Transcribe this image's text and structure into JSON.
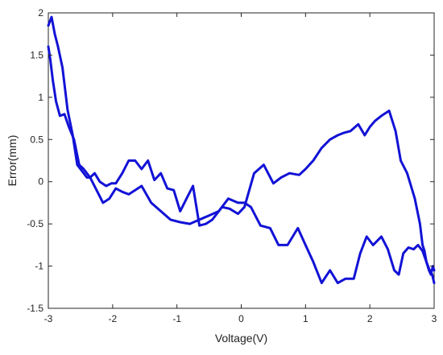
{
  "chart_data": {
    "type": "line",
    "title": "",
    "xlabel": "Voltage(V)",
    "ylabel": "Error(mm)",
    "xlim": [
      -3,
      3
    ],
    "ylim": [
      -1.5,
      2
    ],
    "xticks": [
      -3,
      -2,
      -1,
      0,
      1,
      2,
      3
    ],
    "yticks": [
      -1.5,
      -1,
      -0.5,
      0,
      0.5,
      1,
      1.5,
      2
    ],
    "xtick_labels": [
      "-3",
      "-2",
      "-1",
      "0",
      "1",
      "2",
      "3"
    ],
    "ytick_labels": [
      "-1.5",
      "-1",
      "-0.5",
      "0",
      "0.5",
      "1",
      "1.5",
      "2"
    ],
    "grid": false,
    "legend": null,
    "series": [
      {
        "color": "#1212d6",
        "x": [
          -3.0,
          -2.95,
          -2.9,
          -2.85,
          -2.78,
          -2.7,
          -2.62,
          -2.55,
          -2.5,
          -2.45,
          -2.4,
          -2.35,
          -2.28,
          -2.2,
          -2.1,
          -2.02,
          -1.95,
          -1.85,
          -1.75,
          -1.65,
          -1.55,
          -1.45,
          -1.35,
          -1.25,
          -1.15,
          -1.05,
          -0.95,
          -0.85,
          -0.75,
          -0.65,
          -0.55,
          -0.45,
          -0.3,
          -0.18,
          -0.05,
          0.05,
          0.2,
          0.35,
          0.5,
          0.62,
          0.75,
          0.9,
          1.0,
          1.12,
          1.25,
          1.38,
          1.5,
          1.6,
          1.7,
          1.82,
          1.92,
          2.0,
          2.08,
          2.18,
          2.3,
          2.4,
          2.48,
          2.58,
          2.7,
          2.78,
          2.82,
          2.85,
          2.88,
          2.92,
          2.95,
          2.98,
          3.0
        ],
        "y": [
          1.85,
          1.95,
          1.75,
          1.6,
          1.35,
          0.85,
          0.55,
          0.2,
          0.15,
          0.1,
          0.05,
          0.05,
          0.1,
          0.0,
          -0.05,
          -0.02,
          -0.02,
          0.1,
          0.25,
          0.25,
          0.15,
          0.25,
          0.02,
          0.1,
          -0.08,
          -0.1,
          -0.35,
          -0.2,
          -0.05,
          -0.52,
          -0.5,
          -0.45,
          -0.3,
          -0.32,
          -0.38,
          -0.3,
          0.1,
          0.2,
          -0.02,
          0.05,
          0.1,
          0.08,
          0.15,
          0.25,
          0.4,
          0.5,
          0.55,
          0.58,
          0.6,
          0.68,
          0.55,
          0.65,
          0.72,
          0.78,
          0.84,
          0.6,
          0.25,
          0.1,
          -0.2,
          -0.5,
          -0.75,
          -0.82,
          -0.95,
          -1.05,
          -1.1,
          -1.0,
          -1.05
        ]
      },
      {
        "color": "#1212d6",
        "x": [
          3.0,
          2.97,
          2.93,
          2.88,
          2.82,
          2.75,
          2.68,
          2.6,
          2.52,
          2.45,
          2.38,
          2.28,
          2.18,
          2.05,
          1.95,
          1.85,
          1.75,
          1.62,
          1.5,
          1.38,
          1.25,
          1.12,
          1.0,
          0.88,
          0.72,
          0.58,
          0.45,
          0.3,
          0.15,
          0.05,
          -0.05,
          -0.2,
          -0.35,
          -0.5,
          -0.65,
          -0.8,
          -0.95,
          -1.1,
          -1.25,
          -1.4,
          -1.55,
          -1.65,
          -1.75,
          -1.85,
          -1.95,
          -2.05,
          -2.15,
          -2.25,
          -2.35,
          -2.45,
          -2.52,
          -2.6,
          -2.68,
          -2.75,
          -2.82,
          -2.88,
          -2.93,
          -2.97,
          -3.0
        ],
        "y": [
          -1.2,
          -1.1,
          -1.05,
          -0.95,
          -0.82,
          -0.75,
          -0.8,
          -0.78,
          -0.85,
          -1.1,
          -1.05,
          -0.8,
          -0.65,
          -0.75,
          -0.65,
          -0.85,
          -1.15,
          -1.15,
          -1.2,
          -1.05,
          -1.2,
          -0.95,
          -0.75,
          -0.55,
          -0.75,
          -0.75,
          -0.55,
          -0.52,
          -0.3,
          -0.25,
          -0.25,
          -0.2,
          -0.35,
          -0.4,
          -0.45,
          -0.5,
          -0.48,
          -0.45,
          -0.35,
          -0.25,
          -0.05,
          -0.1,
          -0.15,
          -0.12,
          -0.08,
          -0.2,
          -0.25,
          -0.1,
          0.05,
          0.15,
          0.2,
          0.5,
          0.65,
          0.8,
          0.78,
          0.95,
          1.2,
          1.45,
          1.6
        ]
      }
    ]
  }
}
